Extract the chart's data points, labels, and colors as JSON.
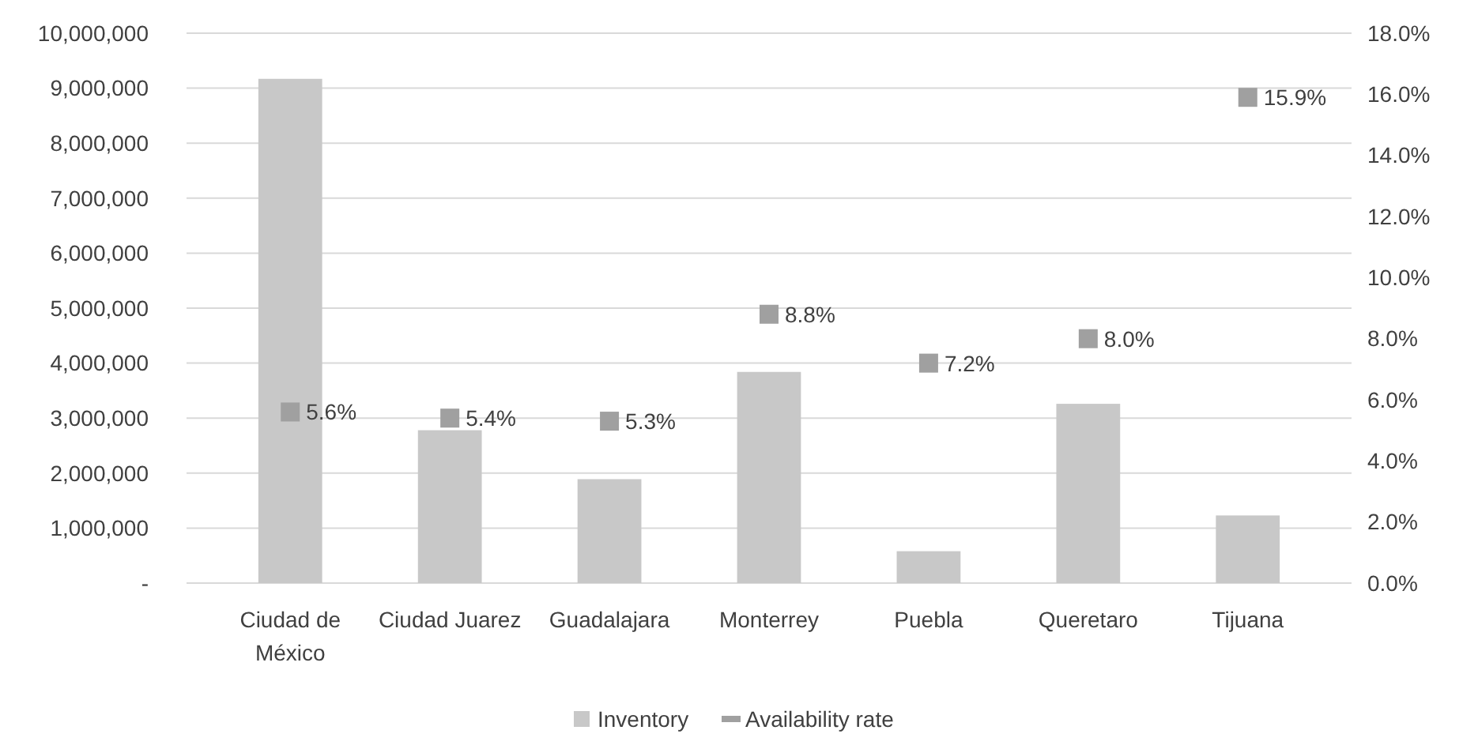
{
  "chart_data": {
    "type": "bar",
    "categories": [
      "Ciudad de México",
      "Ciudad Juarez",
      "Guadalajara",
      "Monterrey",
      "Puebla",
      "Queretaro",
      "Tijuana"
    ],
    "series": [
      {
        "name": "Inventory",
        "color": "#c8c8c8",
        "values": [
          9170000,
          2780000,
          1890000,
          3840000,
          580000,
          3260000,
          1230000
        ]
      },
      {
        "name": "Availability rate",
        "type": "scatter",
        "axis": "y2",
        "color": "#a0a0a0",
        "marker": "square",
        "values": [
          5.6,
          5.4,
          5.3,
          8.8,
          7.2,
          8.0,
          15.9
        ],
        "value_labels": [
          "5.6%",
          "5.4%",
          "5.3%",
          "8.8%",
          "7.2%",
          "8.0%",
          "15.9%"
        ]
      }
    ],
    "ylim": [
      0,
      10000000
    ],
    "yticks": [
      {
        "value": 0,
        "label": "-"
      },
      {
        "value": 1000000,
        "label": "1,000,000"
      },
      {
        "value": 2000000,
        "label": "2,000,000"
      },
      {
        "value": 3000000,
        "label": "3,000,000"
      },
      {
        "value": 4000000,
        "label": "4,000,000"
      },
      {
        "value": 5000000,
        "label": "5,000,000"
      },
      {
        "value": 6000000,
        "label": "6,000,000"
      },
      {
        "value": 7000000,
        "label": "7,000,000"
      },
      {
        "value": 8000000,
        "label": "8,000,000"
      },
      {
        "value": 9000000,
        "label": "9,000,000"
      },
      {
        "value": 10000000,
        "label": "10,000,000"
      }
    ],
    "y2lim": [
      0,
      18
    ],
    "y2ticks": [
      {
        "value": 0,
        "label": "0.0%"
      },
      {
        "value": 2,
        "label": "2.0%"
      },
      {
        "value": 4,
        "label": "4.0%"
      },
      {
        "value": 6,
        "label": "6.0%"
      },
      {
        "value": 8,
        "label": "8.0%"
      },
      {
        "value": 10,
        "label": "10.0%"
      },
      {
        "value": 12,
        "label": "12.0%"
      },
      {
        "value": 14,
        "label": "14.0%"
      },
      {
        "value": 16,
        "label": "16.0%"
      },
      {
        "value": 18,
        "label": "18.0%"
      }
    ],
    "grid": "y",
    "legend": "bottom"
  }
}
